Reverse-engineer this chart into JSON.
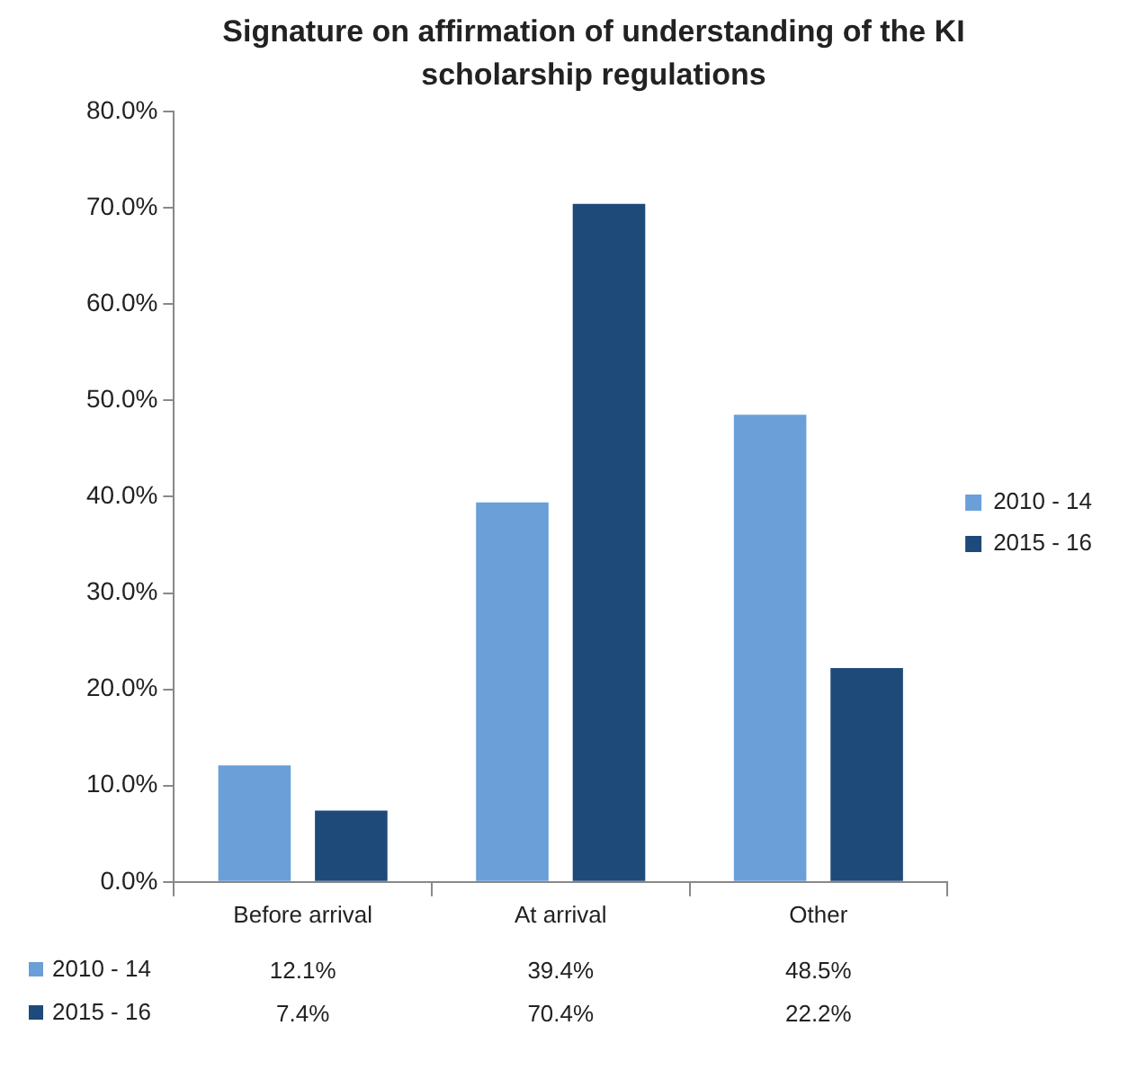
{
  "chart_data": {
    "type": "bar",
    "title": "Signature on affirmation of understanding of the KI scholarship regulations",
    "categories": [
      "Before arrival",
      "At arrival",
      "Other"
    ],
    "series": [
      {
        "name": "2010 - 14",
        "color": "#6a9fd8",
        "values": [
          12.1,
          39.4,
          48.5
        ],
        "value_labels": [
          "12.1%",
          "39.4%",
          "48.5%"
        ]
      },
      {
        "name": "2015 - 16",
        "color": "#1d4a78",
        "values": [
          7.4,
          70.4,
          22.2
        ],
        "value_labels": [
          "7.4%",
          "70.4%",
          "22.2%"
        ]
      }
    ],
    "ylim": [
      0,
      80
    ],
    "yticks": [
      {
        "value": 0,
        "label": "0.0%"
      },
      {
        "value": 10,
        "label": "10.0%"
      },
      {
        "value": 20,
        "label": "20.0%"
      },
      {
        "value": 30,
        "label": "30.0%"
      },
      {
        "value": 40,
        "label": "40.0%"
      },
      {
        "value": 50,
        "label": "50.0%"
      },
      {
        "value": 60,
        "label": "60.0%"
      },
      {
        "value": 70,
        "label": "70.0%"
      },
      {
        "value": 80,
        "label": "80.0%"
      }
    ],
    "grid": false,
    "legend": "right"
  }
}
